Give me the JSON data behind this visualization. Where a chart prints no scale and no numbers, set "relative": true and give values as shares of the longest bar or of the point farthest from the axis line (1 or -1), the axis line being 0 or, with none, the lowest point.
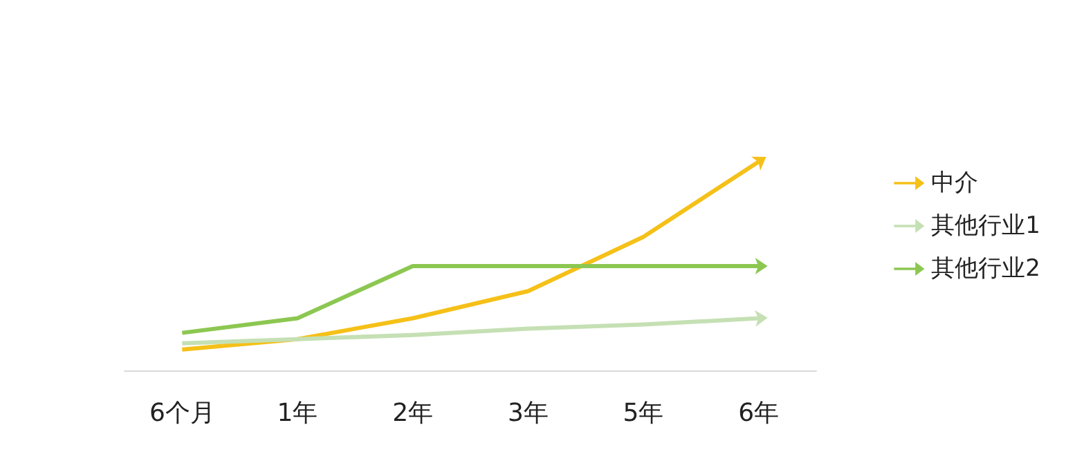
{
  "chart_data": {
    "type": "line",
    "relative": true,
    "legend": "right",
    "grid": false,
    "categories": [
      "6个月",
      "1年",
      "2年",
      "3年",
      "5年",
      "6年"
    ],
    "series": [
      {
        "name": "中介",
        "color": "#f5c018",
        "values": [
          0.1,
          0.15,
          0.25,
          0.38,
          0.64,
          1
        ]
      },
      {
        "name": "其他行业1",
        "color": "#c5e0b4",
        "values": [
          0.13,
          0.15,
          0.17,
          0.2,
          0.22,
          0.25
        ]
      },
      {
        "name": "其他行业2",
        "color": "#8cc751",
        "values": [
          0.18,
          0.25,
          0.5,
          0.5,
          0.5,
          0.5
        ]
      }
    ]
  }
}
